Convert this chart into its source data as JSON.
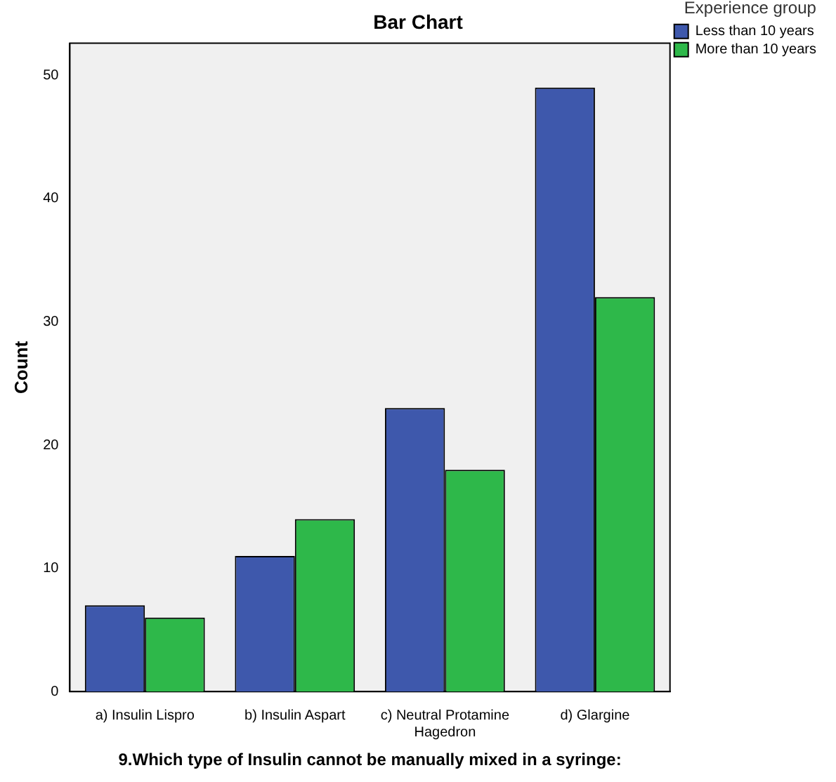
{
  "chart_data": {
    "type": "bar",
    "title": "Bar Chart",
    "xlabel": "9.Which type of Insulin cannot be manually mixed in a syringe:",
    "ylabel": "Count",
    "legend_title": "Experience group",
    "categories": [
      "a) Insulin Lispro",
      "b) Insulin Aspart",
      "c) Neutral Protamine Hagedron",
      "d) Glargine"
    ],
    "series": [
      {
        "name": "Less than 10 years",
        "color": "#3e58ac",
        "values": [
          7,
          11,
          23,
          49
        ]
      },
      {
        "name": "More than 10 years",
        "color": "#2eb84a",
        "values": [
          6,
          14,
          18,
          32
        ]
      }
    ],
    "ylim": [
      0,
      52.6
    ],
    "yticks": [
      0,
      10,
      20,
      30,
      40,
      50
    ],
    "grid": false,
    "legend": "right"
  }
}
